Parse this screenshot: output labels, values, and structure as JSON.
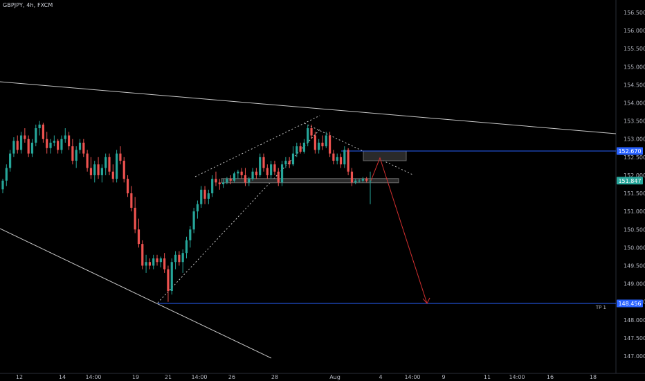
{
  "header": {
    "symbol_title": "GBPJPY, 4h, FXCM"
  },
  "colors": {
    "background": "#000000",
    "up_candle": "#26a69a",
    "down_candle": "#ef5350",
    "axis_text": "#b2b5be",
    "trendline": "#c8c8c8",
    "level_line": "#2962ff",
    "level_badge": "#2962ff",
    "projection_arrow": "#d32f2f",
    "zone_fill": "#2a2a2a",
    "zone_border": "#6b6b6b",
    "price_badge": "#26a69a"
  },
  "chart_data": {
    "type": "candlestick",
    "title": "GBPJPY, 4h, FXCM",
    "ylim": [
      146.8,
      156.8
    ],
    "y_ticks": [
      "156.500",
      "156.000",
      "155.500",
      "155.000",
      "154.500",
      "154.000",
      "153.500",
      "153.000",
      "152.500",
      "152.000",
      "151.500",
      "151.000",
      "150.500",
      "150.000",
      "149.500",
      "149.000",
      "148.500",
      "148.000",
      "147.500",
      "147.000"
    ],
    "x_ticks": [
      "12",
      "14",
      "14:00",
      "19",
      "21",
      "14:00",
      "26",
      "28",
      "Aug",
      "4",
      "14:00",
      "9",
      "11",
      "14:00",
      "16",
      "18"
    ],
    "price_labels": [
      {
        "label": "152.670",
        "value": 152.67
      },
      {
        "label": "151.847",
        "value": 151.85
      },
      {
        "label": "148.456",
        "value": 148.456
      }
    ],
    "annotations": [
      {
        "text": "TP 1",
        "value": 148.456
      }
    ],
    "levels": [
      152.67,
      148.456
    ],
    "projection": {
      "from": 151.85,
      "peak": 152.48,
      "target": 148.456
    },
    "candles": [
      [
        151.61,
        151.9,
        151.5,
        151.85
      ],
      [
        151.85,
        152.3,
        151.7,
        152.2
      ],
      [
        152.2,
        152.7,
        152.1,
        152.6
      ],
      [
        152.6,
        153.05,
        152.5,
        152.95
      ],
      [
        152.95,
        153.1,
        152.6,
        152.7
      ],
      [
        152.7,
        153.2,
        152.6,
        153.1
      ],
      [
        153.1,
        153.3,
        152.9,
        153.0
      ],
      [
        153.0,
        153.1,
        152.5,
        152.6
      ],
      [
        152.6,
        153.0,
        152.5,
        152.9
      ],
      [
        152.9,
        153.4,
        152.8,
        153.3
      ],
      [
        153.3,
        153.5,
        153.1,
        153.4
      ],
      [
        153.4,
        153.45,
        152.9,
        153.0
      ],
      [
        153.0,
        153.2,
        152.6,
        152.75
      ],
      [
        152.75,
        153.0,
        152.6,
        152.9
      ],
      [
        152.9,
        153.1,
        152.8,
        152.95
      ],
      [
        152.95,
        153.0,
        152.6,
        152.7
      ],
      [
        152.7,
        153.1,
        152.6,
        153.0
      ],
      [
        153.0,
        153.3,
        152.9,
        153.1
      ],
      [
        153.1,
        153.2,
        152.7,
        152.8
      ],
      [
        152.8,
        153.0,
        152.3,
        152.4
      ],
      [
        152.4,
        152.8,
        152.2,
        152.7
      ],
      [
        152.7,
        153.0,
        152.6,
        152.9
      ],
      [
        152.9,
        153.0,
        152.5,
        152.6
      ],
      [
        152.6,
        152.7,
        152.1,
        152.2
      ],
      [
        152.2,
        152.5,
        151.9,
        152.0
      ],
      [
        152.0,
        152.4,
        151.8,
        152.3
      ],
      [
        152.3,
        152.5,
        151.9,
        152.0
      ],
      [
        152.0,
        152.3,
        151.8,
        152.2
      ],
      [
        152.2,
        152.6,
        152.0,
        152.5
      ],
      [
        152.5,
        152.6,
        152.0,
        152.1
      ],
      [
        152.1,
        152.3,
        151.8,
        151.9
      ],
      [
        151.9,
        152.7,
        151.8,
        152.6
      ],
      [
        152.6,
        152.8,
        152.3,
        152.4
      ],
      [
        152.4,
        152.5,
        151.8,
        151.9
      ],
      [
        151.9,
        152.0,
        151.4,
        151.5
      ],
      [
        151.5,
        151.7,
        151.0,
        151.1
      ],
      [
        151.1,
        151.4,
        150.4,
        150.5
      ],
      [
        150.5,
        150.8,
        150.0,
        150.1
      ],
      [
        150.1,
        150.2,
        149.4,
        149.5
      ],
      [
        149.5,
        149.8,
        149.3,
        149.6
      ],
      [
        149.6,
        149.7,
        149.4,
        149.5
      ],
      [
        149.5,
        149.8,
        149.4,
        149.7
      ],
      [
        149.7,
        149.8,
        149.5,
        149.6
      ],
      [
        149.6,
        149.75,
        149.45,
        149.7
      ],
      [
        149.7,
        149.85,
        149.3,
        149.4
      ],
      [
        149.4,
        149.5,
        148.5,
        148.8
      ],
      [
        148.8,
        149.7,
        148.7,
        149.6
      ],
      [
        149.6,
        149.9,
        149.4,
        149.8
      ],
      [
        149.8,
        149.9,
        149.5,
        149.6
      ],
      [
        149.6,
        149.95,
        149.3,
        149.85
      ],
      [
        149.85,
        150.3,
        149.7,
        150.2
      ],
      [
        150.2,
        150.6,
        150.0,
        150.5
      ],
      [
        150.5,
        151.1,
        150.4,
        151.0
      ],
      [
        151.0,
        151.3,
        150.8,
        151.2
      ],
      [
        151.2,
        151.7,
        151.1,
        151.6
      ],
      [
        151.6,
        151.7,
        151.2,
        151.35
      ],
      [
        151.35,
        151.6,
        151.2,
        151.5
      ],
      [
        151.5,
        152.0,
        151.4,
        151.9
      ],
      [
        151.9,
        152.1,
        151.7,
        151.8
      ],
      [
        151.8,
        151.9,
        151.6,
        151.75
      ],
      [
        151.75,
        151.9,
        151.65,
        151.8
      ],
      [
        151.8,
        151.95,
        151.75,
        151.9
      ],
      [
        151.9,
        152.0,
        151.75,
        151.85
      ],
      [
        151.85,
        152.1,
        151.8,
        152.05
      ],
      [
        152.05,
        152.15,
        151.9,
        152.1
      ],
      [
        152.1,
        152.2,
        151.9,
        152.0
      ],
      [
        152.0,
        152.2,
        151.7,
        151.8
      ],
      [
        151.8,
        151.95,
        151.7,
        151.9
      ],
      [
        151.9,
        152.2,
        151.85,
        152.1
      ],
      [
        152.1,
        152.2,
        151.9,
        152.0
      ],
      [
        152.0,
        152.6,
        151.95,
        152.5
      ],
      [
        152.5,
        152.6,
        152.1,
        152.2
      ],
      [
        152.2,
        152.3,
        151.9,
        152.0
      ],
      [
        152.0,
        152.4,
        151.9,
        152.3
      ],
      [
        152.3,
        152.4,
        152.0,
        152.1
      ],
      [
        152.1,
        152.2,
        151.7,
        151.8
      ],
      [
        151.8,
        152.4,
        151.7,
        152.3
      ],
      [
        152.3,
        152.5,
        152.2,
        152.4
      ],
      [
        152.4,
        152.5,
        152.2,
        152.3
      ],
      [
        152.3,
        152.8,
        152.25,
        152.6
      ],
      [
        152.6,
        152.9,
        152.5,
        152.8
      ],
      [
        152.8,
        152.9,
        152.6,
        152.65
      ],
      [
        152.65,
        153.0,
        152.6,
        152.9
      ],
      [
        152.9,
        153.4,
        152.8,
        153.3
      ],
      [
        153.3,
        153.4,
        153.0,
        153.1
      ],
      [
        153.1,
        153.2,
        152.6,
        152.7
      ],
      [
        152.7,
        153.0,
        152.6,
        152.9
      ],
      [
        152.9,
        153.1,
        152.7,
        152.8
      ],
      [
        152.8,
        153.2,
        152.75,
        153.1
      ],
      [
        153.1,
        153.2,
        152.5,
        152.6
      ],
      [
        152.6,
        152.7,
        152.3,
        152.4
      ],
      [
        152.4,
        152.6,
        152.3,
        152.5
      ],
      [
        152.5,
        152.6,
        152.2,
        152.3
      ],
      [
        152.3,
        152.8,
        152.2,
        152.7
      ],
      [
        152.7,
        152.75,
        152.0,
        152.1
      ],
      [
        152.1,
        152.2,
        151.7,
        151.8
      ],
      [
        151.8,
        151.9,
        151.75,
        151.85
      ],
      [
        151.85,
        151.9,
        151.8,
        151.85
      ],
      [
        151.85,
        151.95,
        151.8,
        151.9
      ],
      [
        151.9,
        151.95,
        151.8,
        151.85
      ],
      [
        151.85,
        152.1,
        151.2,
        151.85
      ]
    ]
  }
}
